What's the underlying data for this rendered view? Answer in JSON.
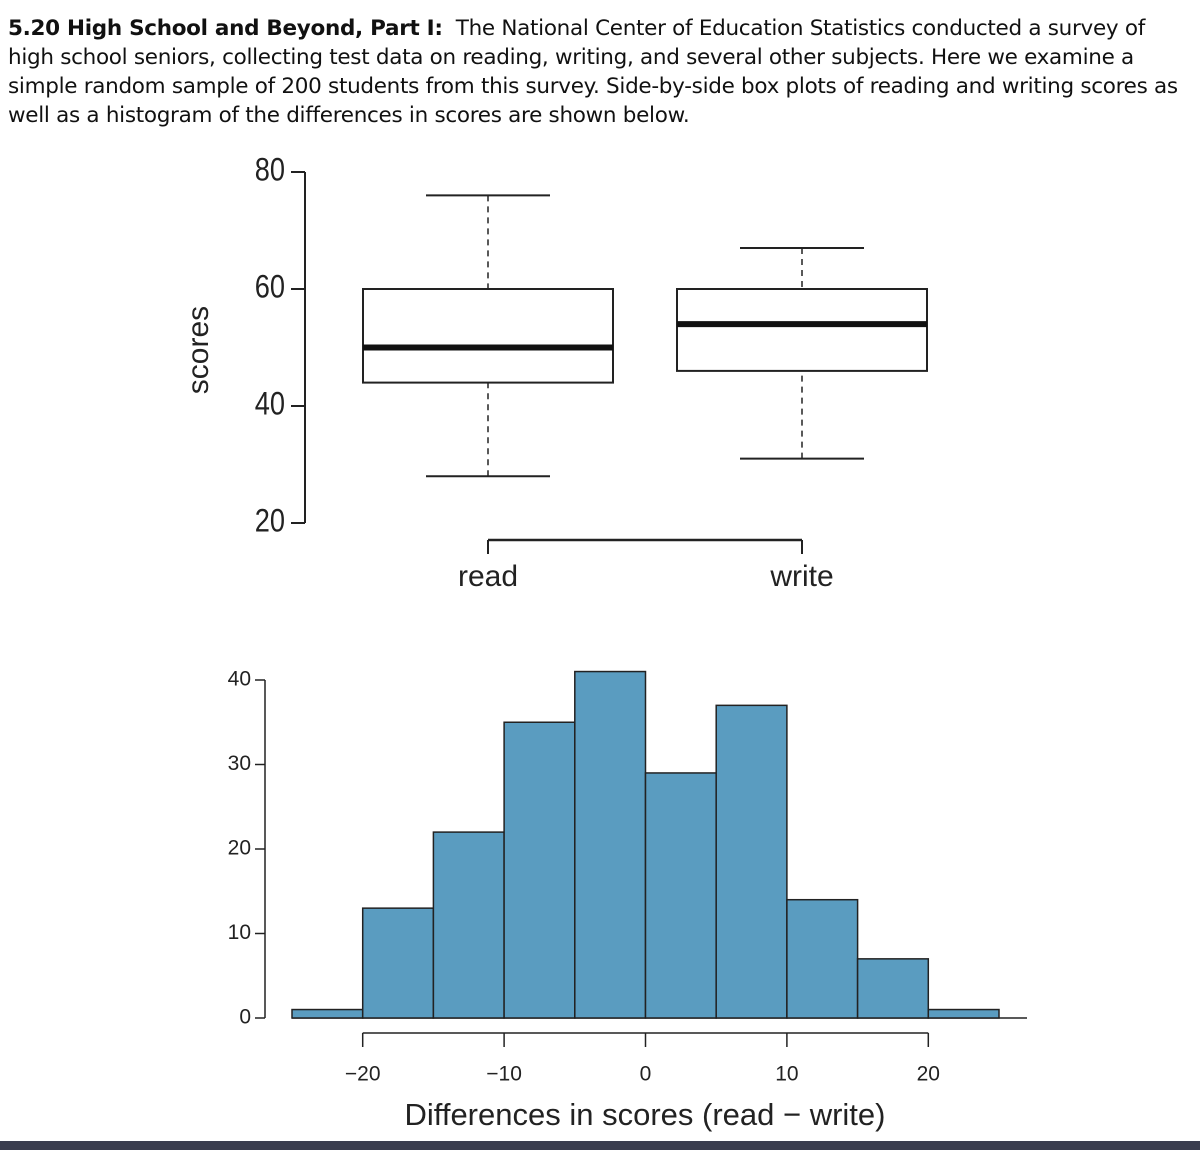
{
  "header": {
    "lead": "5.20 High School and Beyond, Part I:",
    "text": "The National Center of Education Statistics conducted a survey of high school seniors, collecting test data on reading, writing, and several other subjects. Here we examine a simple random sample of 200 students from this survey. Side-by-side box plots of reading and writing scores as well as a histogram of the differences in scores are shown below."
  },
  "chart_data": [
    {
      "type": "box",
      "ylabel": "scores",
      "categories": [
        "read",
        "write"
      ],
      "boxes": [
        {
          "min": 28,
          "q1": 44,
          "median": 50,
          "q3": 60,
          "max": 76
        },
        {
          "min": 31,
          "q1": 46,
          "median": 54,
          "q3": 60,
          "max": 67
        }
      ],
      "ylim": [
        20,
        80
      ],
      "yticks": [
        20,
        40,
        60,
        80
      ]
    },
    {
      "type": "histogram",
      "xlabel": "Differences in scores (read − write)",
      "bins": [
        -25,
        -20,
        -15,
        -10,
        -5,
        0,
        5,
        10,
        15,
        20,
        25
      ],
      "values": [
        1,
        13,
        22,
        35,
        41,
        29,
        37,
        14,
        7,
        1
      ],
      "color": "#5a9cc0",
      "xlim": [
        -25,
        25
      ],
      "xticks": [
        {
          "value": -20,
          "label": "−20"
        },
        {
          "value": -10,
          "label": "−10"
        },
        0,
        10,
        20
      ],
      "ylim": [
        0,
        40
      ],
      "yticks": [
        0,
        10,
        20,
        30,
        40
      ]
    }
  ]
}
